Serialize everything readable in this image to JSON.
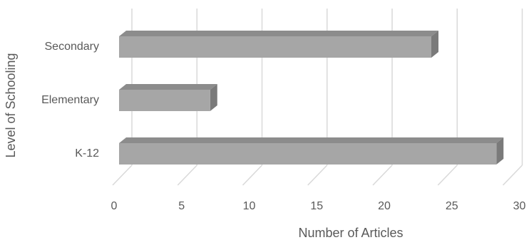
{
  "chart_data": {
    "type": "bar",
    "orientation": "horizontal",
    "style": "3d",
    "title": "",
    "xlabel": "Number of Articles",
    "ylabel": "Level of Schooling",
    "categories": [
      "K-12",
      "Elementary",
      "Secondary"
    ],
    "values": [
      29,
      7,
      24
    ],
    "xlim": [
      0,
      30
    ],
    "x_ticks": [
      "0",
      "5",
      "10",
      "15",
      "20",
      "25",
      "30"
    ],
    "grid": true,
    "legend": "none",
    "colors": {
      "bar_front": "#a6a6a6",
      "bar_top": "#8c8c8c",
      "bar_side": "#7a7a7a",
      "grid": "#d9d9d9",
      "text": "#595959"
    }
  }
}
